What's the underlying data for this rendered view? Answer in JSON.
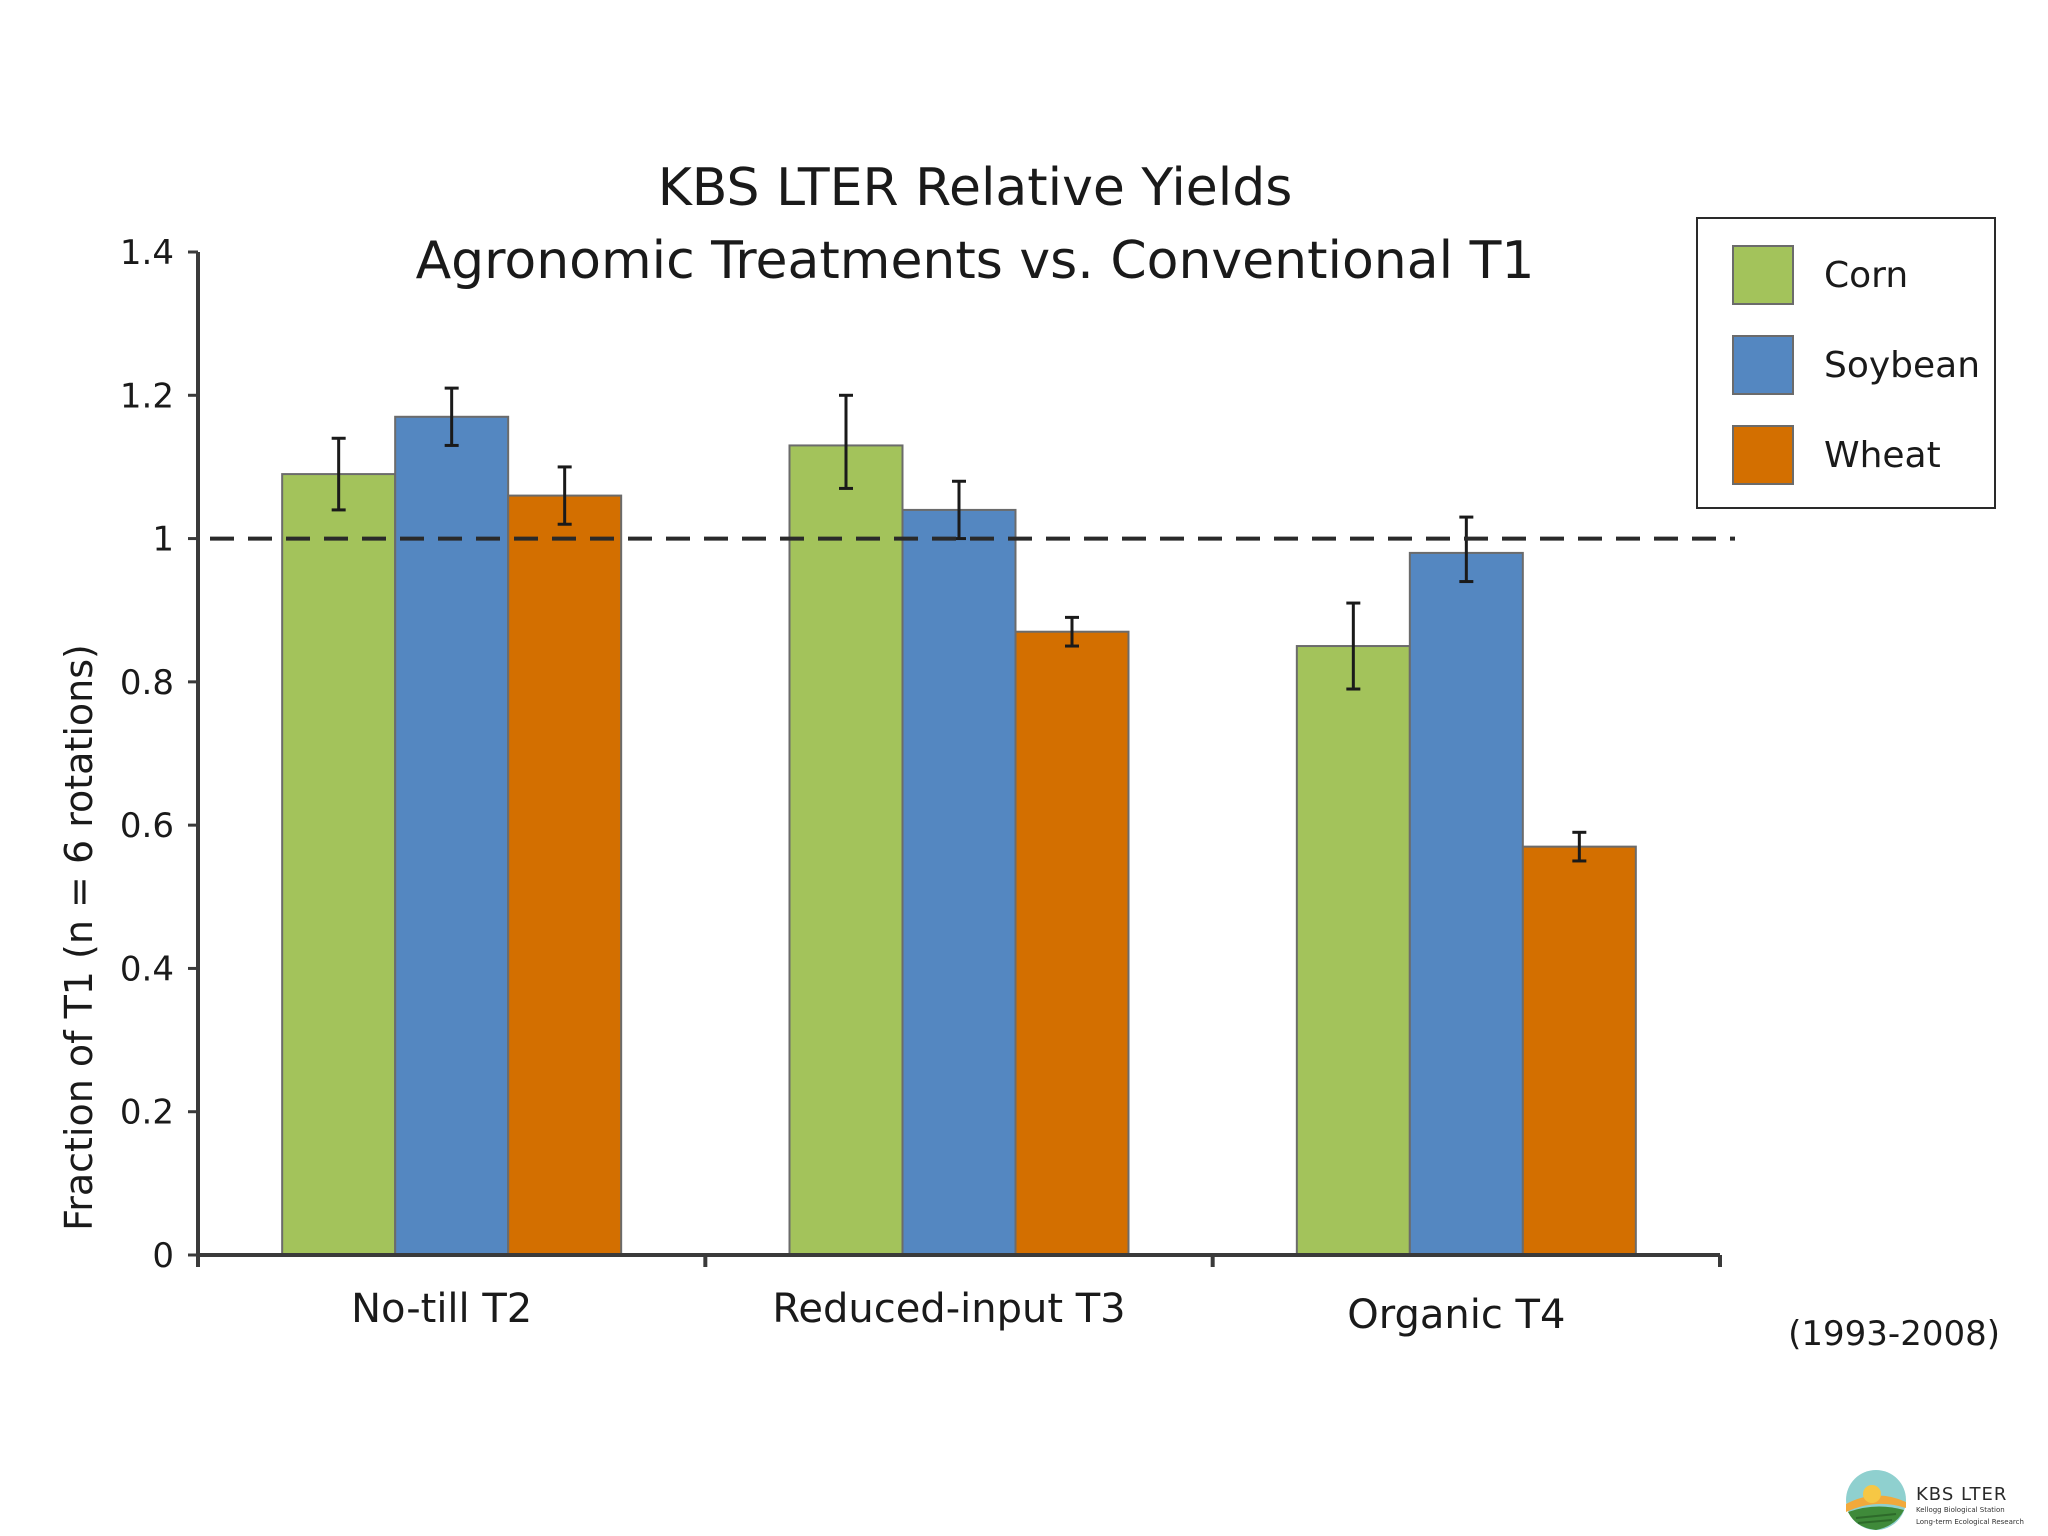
{
  "chart_data": {
    "type": "bar",
    "title": [
      "KBS LTER Relative Yields",
      "Agronomic Treatments vs. Conventional T1"
    ],
    "ylabel": "Fraction of T1 (n = 6 rotations)",
    "xlabel": "",
    "ylim": [
      0,
      1.4
    ],
    "yticks": [
      0,
      0.2,
      0.4,
      0.6,
      0.8,
      1,
      1.2,
      1.4
    ],
    "ytick_labels": [
      "0",
      "0.2",
      "0.4",
      "0.6",
      "0.8",
      "1",
      "1.2",
      "1.4"
    ],
    "categories": [
      "No-till T2",
      "Reduced-input T3",
      "Organic T4"
    ],
    "series": [
      {
        "name": "Corn",
        "color": "#a3c35b",
        "values": [
          1.09,
          1.13,
          0.85
        ],
        "err_low": [
          1.04,
          1.07,
          0.79
        ],
        "err_high": [
          1.14,
          1.2,
          0.91
        ]
      },
      {
        "name": "Soybean",
        "color": "#5487c1",
        "values": [
          1.17,
          1.04,
          0.98
        ],
        "err_low": [
          1.13,
          1.0,
          0.94
        ],
        "err_high": [
          1.21,
          1.08,
          1.03
        ]
      },
      {
        "name": "Wheat",
        "color": "#d36f00",
        "values": [
          1.06,
          0.87,
          0.57
        ],
        "err_low": [
          1.02,
          0.85,
          0.55
        ],
        "err_high": [
          1.1,
          0.89,
          0.59
        ]
      }
    ],
    "reference_line": {
      "value": 1.0,
      "style": "dashed"
    },
    "legend_position": "top-right",
    "grid": false,
    "note": "(1993-2008)"
  },
  "logo": {
    "title": "KBS LTER",
    "subtitle1": "Kellogg Biological Station",
    "subtitle2": "Long-term Ecological Research"
  }
}
